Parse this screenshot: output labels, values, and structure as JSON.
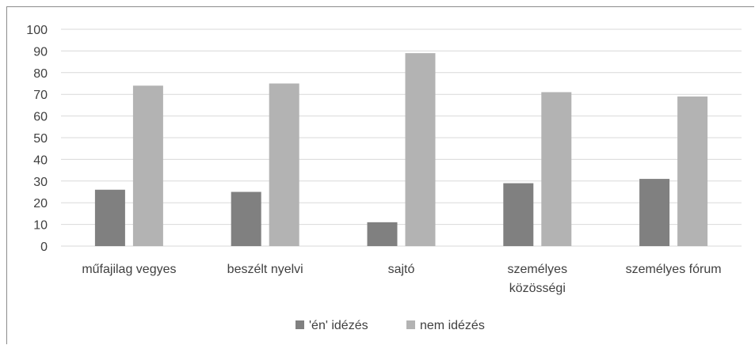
{
  "chart_data": {
    "type": "bar",
    "categories": [
      [
        "műfajilag vegyes"
      ],
      [
        "beszélt nyelvi"
      ],
      [
        "sajtó"
      ],
      [
        "személyes",
        "közösségi"
      ],
      [
        "személyes fórum"
      ]
    ],
    "series": [
      {
        "name": "'én' idézés",
        "values": [
          26,
          25,
          11,
          29,
          31
        ],
        "color": "#808080"
      },
      {
        "name": "nem idézés",
        "values": [
          74,
          75,
          89,
          71,
          69
        ],
        "color": "#b3b3b3"
      }
    ],
    "title": "",
    "xlabel": "",
    "ylabel": "",
    "ylim": [
      0,
      100
    ],
    "yticks": [
      0,
      10,
      20,
      30,
      40,
      50,
      60,
      70,
      80,
      90,
      100
    ],
    "grid": true,
    "legend_position": "bottom"
  }
}
